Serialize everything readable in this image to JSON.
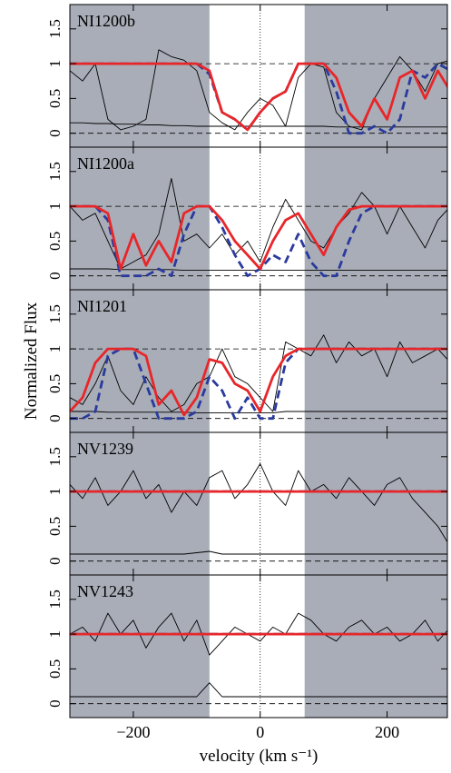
{
  "chart_data": [
    {
      "type": "line",
      "label": "NI1200b",
      "x": [
        -300,
        -280,
        -260,
        -240,
        -220,
        -200,
        -180,
        -160,
        -140,
        -120,
        -100,
        -80,
        -60,
        -40,
        -20,
        0,
        20,
        40,
        60,
        80,
        100,
        120,
        140,
        160,
        180,
        200,
        220,
        240,
        260,
        280,
        300
      ],
      "xlim": [
        -300,
        295
      ],
      "ylim": [
        -0.2,
        1.85
      ],
      "yticks": [
        0,
        0.5,
        1,
        1.5
      ],
      "hlines": [
        0,
        1
      ],
      "vline": 0,
      "unshaded": [
        -80,
        70
      ],
      "series": [
        {
          "color": "#000000",
          "values": [
            0.9,
            0.75,
            1.0,
            0.2,
            0.05,
            0.1,
            0.2,
            1.2,
            1.1,
            1.05,
            0.9,
            0.3,
            0.15,
            0.05,
            0.3,
            0.5,
            0.4,
            0.1,
            0.8,
            1.0,
            0.95,
            0.3,
            0.1,
            0.05,
            0.5,
            0.8,
            1.1,
            0.9,
            0.6,
            1.0,
            1.05
          ]
        },
        {
          "color": "#000000",
          "values": [
            0.15,
            0.15,
            0.14,
            0.14,
            0.13,
            0.13,
            0.12,
            0.12,
            0.11,
            0.11,
            0.1,
            0.1,
            0.1,
            0.1,
            0.1,
            0.1,
            0.1,
            0.1,
            0.1,
            0.1,
            0.1,
            0.09,
            0.09,
            0.09,
            0.09,
            0.09,
            0.09,
            0.09,
            0.09,
            0.09,
            0.09
          ]
        },
        {
          "color": "#2a3a9e",
          "dashed": true,
          "values": [
            1,
            1,
            1,
            1,
            1,
            1,
            1,
            1,
            1,
            1,
            1,
            0.85,
            0.3,
            0.2,
            0.05,
            0.3,
            0.5,
            0.6,
            1,
            1,
            1,
            0.6,
            0.0,
            0.0,
            0.1,
            0.0,
            0.2,
            0.9,
            0.8,
            1,
            0.9
          ]
        },
        {
          "color": "#e8262a",
          "values": [
            1,
            1,
            1,
            1,
            1,
            1,
            1,
            1,
            1,
            1,
            1,
            0.9,
            0.3,
            0.2,
            0.05,
            0.3,
            0.5,
            0.6,
            1.0,
            1,
            1,
            0.8,
            0.3,
            0.1,
            0.5,
            0.2,
            0.8,
            0.9,
            0.5,
            0.9,
            0.6
          ]
        }
      ]
    },
    {
      "type": "line",
      "label": "NI1200a",
      "x": [
        -300,
        -280,
        -260,
        -240,
        -220,
        -200,
        -180,
        -160,
        -140,
        -120,
        -100,
        -80,
        -60,
        -40,
        -20,
        0,
        20,
        40,
        60,
        80,
        100,
        120,
        140,
        160,
        180,
        200,
        220,
        240,
        260,
        280,
        300
      ],
      "xlim": [
        -300,
        295
      ],
      "ylim": [
        -0.2,
        1.85
      ],
      "yticks": [
        0,
        0.5,
        1,
        1.5
      ],
      "hlines": [
        0,
        1
      ],
      "vline": 0,
      "unshaded": [
        -80,
        70
      ],
      "series": [
        {
          "color": "#000000",
          "values": [
            1.0,
            0.8,
            0.9,
            0.5,
            0.1,
            0.2,
            0.3,
            0.6,
            1.4,
            0.5,
            0.6,
            0.4,
            0.6,
            0.3,
            0.5,
            0.2,
            0.7,
            1.1,
            0.8,
            0.5,
            0.4,
            0.7,
            0.9,
            1.2,
            1.0,
            0.6,
            1.0,
            0.7,
            0.4,
            0.8,
            1.0
          ]
        },
        {
          "color": "#000000",
          "values": [
            0.1,
            0.1,
            0.1,
            0.1,
            0.09,
            0.09,
            0.09,
            0.09,
            0.09,
            0.08,
            0.08,
            0.08,
            0.08,
            0.08,
            0.08,
            0.08,
            0.08,
            0.08,
            0.08,
            0.08,
            0.08,
            0.08,
            0.08,
            0.08,
            0.08,
            0.08,
            0.08,
            0.08,
            0.08,
            0.08,
            0.08
          ]
        },
        {
          "color": "#2a3a9e",
          "dashed": true,
          "values": [
            1,
            1,
            1,
            0.8,
            0.0,
            0.0,
            0.0,
            0.1,
            0.0,
            0.6,
            1,
            1,
            0.7,
            0.3,
            0.0,
            0.1,
            0.3,
            0.2,
            0.6,
            0.2,
            0.0,
            0.0,
            0.5,
            0.9,
            1,
            1,
            1,
            1,
            1,
            1,
            1
          ]
        },
        {
          "color": "#e8262a",
          "values": [
            1,
            1,
            1,
            0.9,
            0.1,
            0.6,
            0.15,
            0.5,
            0.2,
            0.9,
            1,
            1,
            0.8,
            0.5,
            0.3,
            0.1,
            0.5,
            0.8,
            0.9,
            0.6,
            0.3,
            0.7,
            0.95,
            1,
            1,
            1,
            1,
            1,
            1,
            1,
            1
          ]
        }
      ]
    },
    {
      "type": "line",
      "label": "NI1201",
      "ylabel": "Normalized Flux",
      "x": [
        -300,
        -280,
        -260,
        -240,
        -220,
        -200,
        -180,
        -160,
        -140,
        -120,
        -100,
        -80,
        -60,
        -40,
        -20,
        0,
        20,
        40,
        60,
        80,
        100,
        120,
        140,
        160,
        180,
        200,
        220,
        240,
        260,
        280,
        300
      ],
      "xlim": [
        -300,
        295
      ],
      "ylim": [
        -0.2,
        1.85
      ],
      "yticks": [
        0,
        0.5,
        1,
        1.5
      ],
      "hlines": [
        0,
        1
      ],
      "vline": 0,
      "unshaded": [
        -80,
        70
      ],
      "series": [
        {
          "color": "#000000",
          "values": [
            0.3,
            0.2,
            0.5,
            0.9,
            0.4,
            0.2,
            0.6,
            0.3,
            0.1,
            0.2,
            0.5,
            0.6,
            1.0,
            0.6,
            0.5,
            0.3,
            0.1,
            1.1,
            1.0,
            0.9,
            1.2,
            0.8,
            1.1,
            0.9,
            1.0,
            0.6,
            1.1,
            0.8,
            0.9,
            1.0,
            0.8
          ]
        },
        {
          "color": "#000000",
          "values": [
            0.1,
            0.1,
            0.1,
            0.09,
            0.09,
            0.09,
            0.09,
            0.09,
            0.09,
            0.09,
            0.08,
            0.08,
            0.08,
            0.08,
            0.08,
            0.08,
            0.08,
            0.1,
            0.1,
            0.1,
            0.1,
            0.1,
            0.1,
            0.1,
            0.1,
            0.1,
            0.1,
            0.1,
            0.1,
            0.1,
            0.1
          ]
        },
        {
          "color": "#2a3a9e",
          "dashed": true,
          "values": [
            0.0,
            0.0,
            0.1,
            0.9,
            1,
            1,
            0.5,
            0.0,
            0.0,
            0.0,
            0.1,
            0.6,
            0.4,
            0.0,
            0.3,
            0.0,
            0.0,
            0.8,
            1,
            1,
            1,
            1,
            1,
            1,
            1,
            1,
            1,
            1,
            1,
            1,
            1
          ]
        },
        {
          "color": "#e8262a",
          "values": [
            0.1,
            0.3,
            0.8,
            1,
            1,
            1,
            0.9,
            0.2,
            0.4,
            0.05,
            0.3,
            0.85,
            0.8,
            0.5,
            0.4,
            0.1,
            0.6,
            0.9,
            1,
            1,
            1,
            1,
            1,
            1,
            1,
            1,
            1,
            1,
            1,
            1,
            1
          ]
        }
      ]
    },
    {
      "type": "line",
      "label": "NV1239",
      "x": [
        -300,
        -280,
        -260,
        -240,
        -220,
        -200,
        -180,
        -160,
        -140,
        -120,
        -100,
        -80,
        -60,
        -40,
        -20,
        0,
        20,
        40,
        60,
        80,
        100,
        120,
        140,
        160,
        180,
        200,
        220,
        240,
        260,
        280,
        300
      ],
      "xlim": [
        -300,
        295
      ],
      "ylim": [
        -0.2,
        1.85
      ],
      "yticks": [
        0,
        0.5,
        1,
        1.5
      ],
      "hlines": [
        0,
        1
      ],
      "vline": 0,
      "unshaded": [
        -80,
        70
      ],
      "series": [
        {
          "color": "#000000",
          "values": [
            1.1,
            0.9,
            1.2,
            0.8,
            1.0,
            1.3,
            0.9,
            1.1,
            0.7,
            1.0,
            0.8,
            1.2,
            1.3,
            0.9,
            1.1,
            1.4,
            1.0,
            0.8,
            1.3,
            1.0,
            1.1,
            0.9,
            1.2,
            1.0,
            0.8,
            1.1,
            1.2,
            0.9,
            0.7,
            0.5,
            0.2
          ]
        },
        {
          "color": "#000000",
          "values": [
            0.1,
            0.1,
            0.1,
            0.1,
            0.1,
            0.1,
            0.1,
            0.1,
            0.1,
            0.1,
            0.12,
            0.14,
            0.1,
            0.1,
            0.1,
            0.1,
            0.1,
            0.1,
            0.1,
            0.1,
            0.1,
            0.1,
            0.1,
            0.1,
            0.1,
            0.1,
            0.1,
            0.1,
            0.1,
            0.1,
            0.1
          ]
        },
        {
          "color": "#2a3a9e",
          "dashed": true,
          "values": [
            1,
            1,
            1,
            1,
            1,
            1,
            1,
            1,
            1,
            1,
            1,
            1,
            1,
            1,
            1,
            1,
            1,
            1,
            1,
            1,
            1,
            1,
            1,
            1,
            1,
            1,
            1,
            1,
            1,
            1,
            1
          ]
        },
        {
          "color": "#e8262a",
          "values": [
            1,
            1,
            1,
            1,
            1,
            1,
            1,
            1,
            1,
            1,
            1,
            1,
            1,
            1,
            1,
            1,
            1,
            1,
            1,
            1,
            1,
            1,
            1,
            1,
            1,
            1,
            1,
            1,
            1,
            1,
            1
          ]
        }
      ]
    },
    {
      "type": "line",
      "label": "NV1243",
      "xlabel": "velocity (km s⁻¹)",
      "xticks": [
        {
          "value": -200,
          "label": "−200"
        },
        0,
        200
      ],
      "x": [
        -300,
        -280,
        -260,
        -240,
        -220,
        -200,
        -180,
        -160,
        -140,
        -120,
        -100,
        -80,
        -60,
        -40,
        -20,
        0,
        20,
        40,
        60,
        80,
        100,
        120,
        140,
        160,
        180,
        200,
        220,
        240,
        260,
        280,
        300
      ],
      "xlim": [
        -300,
        295
      ],
      "ylim": [
        -0.2,
        1.85
      ],
      "yticks": [
        0,
        0.5,
        1,
        1.5
      ],
      "hlines": [
        0,
        1
      ],
      "vline": 0,
      "unshaded": [
        -80,
        70
      ],
      "series": [
        {
          "color": "#000000",
          "values": [
            1.0,
            1.1,
            0.9,
            1.3,
            1.0,
            1.2,
            0.8,
            1.1,
            1.3,
            0.9,
            1.2,
            0.7,
            0.9,
            1.1,
            1.0,
            0.9,
            1.1,
            1.0,
            1.3,
            1.2,
            1.0,
            0.9,
            1.1,
            1.2,
            1.0,
            1.1,
            0.9,
            1.0,
            1.2,
            0.9,
            1.1
          ]
        },
        {
          "color": "#000000",
          "values": [
            0.1,
            0.1,
            0.1,
            0.1,
            0.1,
            0.1,
            0.1,
            0.1,
            0.1,
            0.1,
            0.1,
            0.3,
            0.1,
            0.1,
            0.1,
            0.1,
            0.1,
            0.1,
            0.1,
            0.1,
            0.1,
            0.1,
            0.1,
            0.1,
            0.1,
            0.1,
            0.1,
            0.1,
            0.1,
            0.1,
            0.1
          ]
        },
        {
          "color": "#2a3a9e",
          "dashed": true,
          "values": [
            1,
            1,
            1,
            1,
            1,
            1,
            1,
            1,
            1,
            1,
            1,
            1,
            1,
            1,
            1,
            1,
            1,
            1,
            1,
            1,
            1,
            1,
            1,
            1,
            1,
            1,
            1,
            1,
            1,
            1,
            1
          ]
        },
        {
          "color": "#e8262a",
          "values": [
            1,
            1,
            1,
            1,
            1,
            1,
            1,
            1,
            1,
            1,
            1,
            1,
            1,
            1,
            1,
            1,
            1,
            1,
            1,
            1,
            1,
            1,
            1,
            1,
            1,
            1,
            1,
            1,
            1,
            1,
            1
          ]
        }
      ]
    }
  ]
}
